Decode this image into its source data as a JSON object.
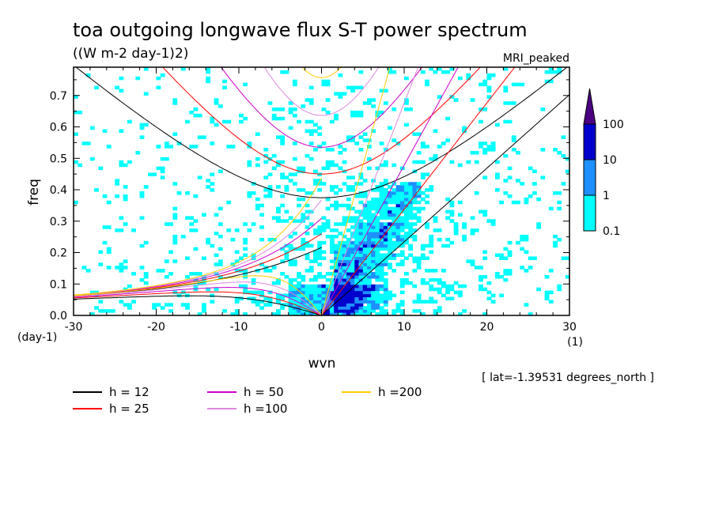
{
  "chart_data": {
    "type": "heatmap",
    "title": "toa outgoing longwave flux S-T power spectrum",
    "subtitle": "((W m-2 day-1)2)",
    "model_label": "MRI_peaked",
    "xlabel": "wvn",
    "ylabel": "freq",
    "y_unit_label": "(day-1)",
    "x_unit_label": "(1)",
    "xlim": [
      -30,
      30
    ],
    "ylim": [
      0,
      0.79
    ],
    "x_ticks": [
      "-30",
      "-20",
      "-10",
      "0",
      "10",
      "20",
      "30"
    ],
    "x_tick_values": [
      -30,
      -20,
      -10,
      0,
      10,
      20,
      30
    ],
    "y_ticks": [
      "0.0",
      "0.1",
      "0.2",
      "0.3",
      "0.4",
      "0.5",
      "0.6",
      "0.7"
    ],
    "y_tick_values": [
      0,
      0.1,
      0.2,
      0.3,
      0.4,
      0.5,
      0.6,
      0.7
    ],
    "colorbar": {
      "levels": [
        "0.1",
        "1",
        "10",
        "100"
      ],
      "colors": [
        "#00ffff",
        "#1e90ff",
        "#0000cd",
        "#4b0082"
      ]
    },
    "annotation": "[ lat=-1.39531 degrees_north ]",
    "dispersion_curves": [
      {
        "label": "h = 12",
        "h": 12,
        "color": "#000000"
      },
      {
        "label": "h = 25",
        "h": 25,
        "color": "#ff0000"
      },
      {
        "label": "h = 50",
        "h": 50,
        "color": "#cc00cc"
      },
      {
        "label": "h =100",
        "h": 100,
        "color": "#dd88dd"
      },
      {
        "label": "h =200",
        "h": 200,
        "color": "#ffcc00"
      }
    ]
  }
}
